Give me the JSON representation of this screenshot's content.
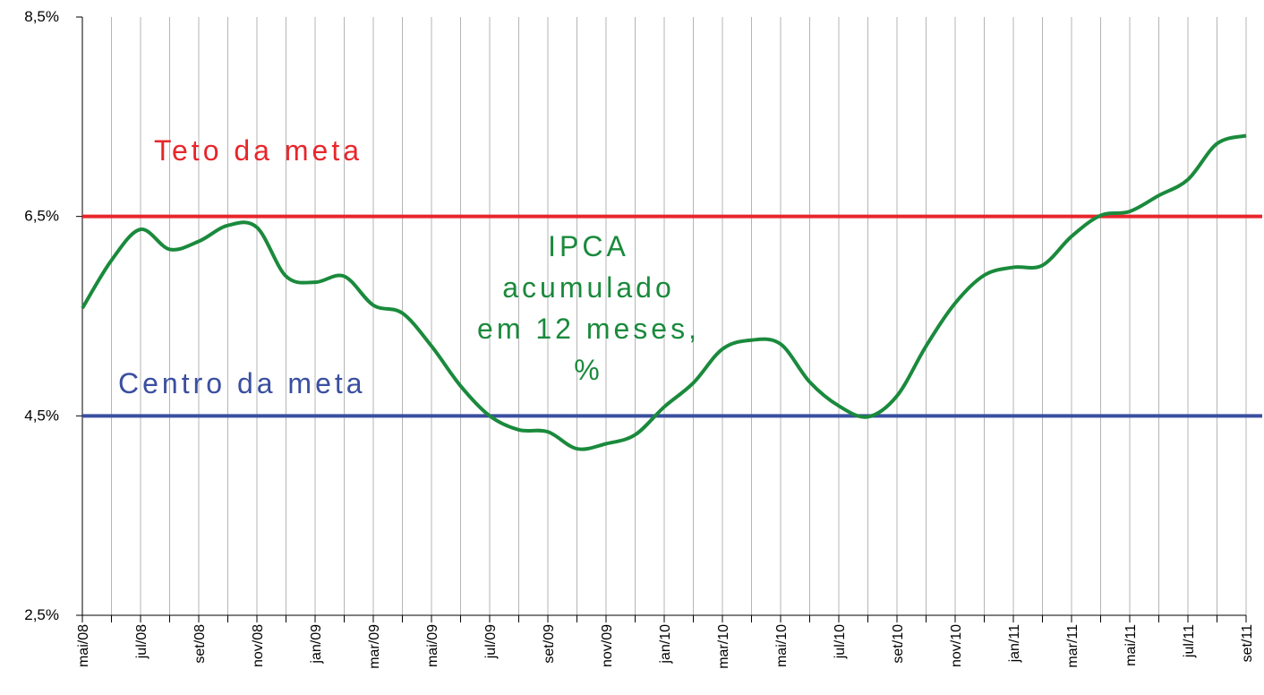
{
  "chart_data": {
    "type": "line",
    "categories": [
      "mai/08",
      null,
      "jul/08",
      null,
      "set/08",
      null,
      "nov/08",
      null,
      "jan/09",
      null,
      "mar/09",
      null,
      "mai/09",
      null,
      "jul/09",
      null,
      "set/09",
      null,
      "nov/09",
      null,
      "jan/10",
      null,
      "mar/10",
      null,
      "mai/10",
      null,
      "jul/10",
      null,
      "set/10",
      null,
      "nov/10",
      null,
      "jan/11",
      null,
      "mar/11",
      null,
      "mai/11",
      null,
      "jul/11",
      null,
      "set/11"
    ],
    "series": [
      {
        "name": "IPCA acumulado em 12 meses, %",
        "color": "#1a8a3c",
        "values": [
          5.58,
          6.06,
          6.37,
          6.17,
          6.25,
          6.41,
          6.39,
          5.9,
          5.84,
          5.9,
          5.61,
          5.53,
          5.2,
          4.8,
          4.5,
          4.36,
          4.34,
          4.17,
          4.22,
          4.31,
          4.59,
          4.83,
          5.17,
          5.26,
          5.22,
          4.84,
          4.6,
          4.49,
          4.7,
          5.2,
          5.63,
          5.91,
          5.99,
          6.01,
          6.3,
          6.51,
          6.55,
          6.71,
          6.87,
          7.23,
          7.31
        ]
      }
    ],
    "reference_lines": [
      {
        "name": "Teto da meta",
        "value": 6.5,
        "color": "#e8262b"
      },
      {
        "name": "Centro da meta",
        "value": 4.5,
        "color": "#3a4fa0"
      }
    ],
    "ylim": [
      2.5,
      8.5
    ],
    "yticks": [
      {
        "value": 2.5,
        "label": "2,5%"
      },
      {
        "value": 4.5,
        "label": "4,5%"
      },
      {
        "value": 6.5,
        "label": "6,5%"
      },
      {
        "value": 8.5,
        "label": "8,5%"
      }
    ],
    "grid": true
  }
}
